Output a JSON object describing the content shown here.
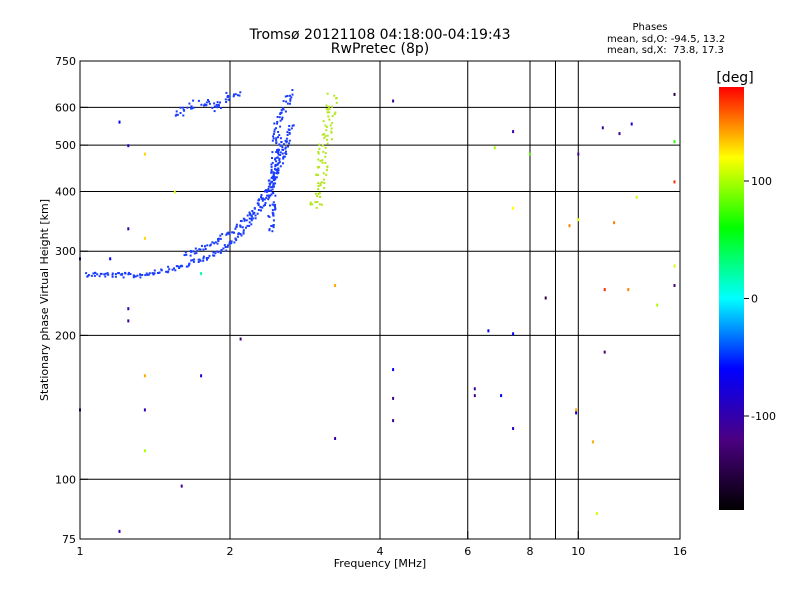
{
  "chart_data": {
    "type": "scatter",
    "title": "Tromsø 20121108 04:18:00-04:19:43",
    "subtitle": "RwPretec (8p)",
    "xlabel": "Frequency [MHz]",
    "ylabel": "Stationary phase Virtual Height [km]",
    "x_scale": "log",
    "y_scale": "log",
    "xlim": [
      1,
      16
    ],
    "ylim": [
      75,
      750
    ],
    "x_ticks": [
      1,
      2,
      4,
      6,
      8,
      10,
      16
    ],
    "x_tick_labels": [
      "1",
      "2",
      "4",
      "6",
      "8",
      "10",
      "16"
    ],
    "x_minor_ticks": [
      9
    ],
    "y_ticks": [
      75,
      100,
      200,
      300,
      400,
      500,
      600,
      750
    ],
    "y_tick_labels": [
      "75",
      "100",
      "200",
      "300",
      "400",
      "500",
      "600",
      "750"
    ],
    "grid": true,
    "stats": {
      "heading": "Phases",
      "line1": "mean, sd,O: -94.5, 13.2",
      "line2": "mean, sd,X:  73.8, 17.3"
    },
    "colorbar": {
      "label": "[deg]",
      "range": [
        -180,
        180
      ],
      "ticks": [
        -100,
        0,
        100
      ],
      "tick_labels": [
        "-100",
        "0",
        "100"
      ],
      "colormap": [
        "#000000",
        "#4b0082",
        "#0000ff",
        "#00ffff",
        "#00ff00",
        "#ffff00",
        "#ff0000"
      ]
    },
    "traces": {
      "color_o": "#1a3cff",
      "color_x": "#b4e61e",
      "f_layer_lower_o": {
        "x": [
          1.02,
          1.3,
          1.6,
          1.9,
          2.1,
          2.3,
          2.45,
          2.55
        ],
        "y": [
          270,
          268,
          280,
          300,
          330,
          370,
          430,
          520
        ]
      },
      "f_layer_upper_o": {
        "x": [
          1.62,
          1.8,
          2.0,
          2.2,
          2.4,
          2.55,
          2.65
        ],
        "y": [
          295,
          310,
          330,
          360,
          420,
          480,
          560
        ]
      },
      "f_layer_vertical_o": {
        "x": [
          2.4,
          2.48,
          2.56,
          2.62,
          2.66
        ],
        "y": [
          330,
          560,
          600,
          640,
          650
        ]
      },
      "e_cusp_o": {
        "x": [
          1.55,
          1.65,
          1.75,
          1.85,
          1.95,
          2.1
        ],
        "y": [
          580,
          600,
          620,
          600,
          630,
          650
        ]
      },
      "x_trace": {
        "x": [
          2.95,
          3.0,
          3.05,
          3.1,
          3.15,
          3.2
        ],
        "y": [
          370,
          400,
          450,
          520,
          590,
          640
        ]
      }
    },
    "scatter_points": [
      {
        "x": 1.0,
        "y": 290,
        "phase": -100
      },
      {
        "x": 1.0,
        "y": 140,
        "phase": -100
      },
      {
        "x": 1.15,
        "y": 290,
        "phase": -60
      },
      {
        "x": 1.2,
        "y": 560,
        "phase": -70
      },
      {
        "x": 1.25,
        "y": 500,
        "phase": -90
      },
      {
        "x": 1.25,
        "y": 335,
        "phase": -100
      },
      {
        "x": 1.25,
        "y": 228,
        "phase": -100
      },
      {
        "x": 1.25,
        "y": 215,
        "phase": -110
      },
      {
        "x": 1.35,
        "y": 480,
        "phase": 130
      },
      {
        "x": 1.35,
        "y": 320,
        "phase": 130
      },
      {
        "x": 1.35,
        "y": 165,
        "phase": 140
      },
      {
        "x": 1.35,
        "y": 140,
        "phase": -100
      },
      {
        "x": 1.35,
        "y": 115,
        "phase": 100
      },
      {
        "x": 1.55,
        "y": 400,
        "phase": 110
      },
      {
        "x": 1.6,
        "y": 97,
        "phase": -110
      },
      {
        "x": 1.75,
        "y": 270,
        "phase": 20
      },
      {
        "x": 1.75,
        "y": 165,
        "phase": -80
      },
      {
        "x": 1.2,
        "y": 78,
        "phase": -100
      },
      {
        "x": 2.1,
        "y": 197,
        "phase": -130
      },
      {
        "x": 3.25,
        "y": 255,
        "phase": 140
      },
      {
        "x": 3.25,
        "y": 122,
        "phase": -100
      },
      {
        "x": 4.25,
        "y": 620,
        "phase": -110
      },
      {
        "x": 4.25,
        "y": 170,
        "phase": -60
      },
      {
        "x": 4.25,
        "y": 148,
        "phase": -120
      },
      {
        "x": 4.25,
        "y": 133,
        "phase": -110
      },
      {
        "x": 6.2,
        "y": 155,
        "phase": -110
      },
      {
        "x": 6.2,
        "y": 150,
        "phase": -120
      },
      {
        "x": 6.6,
        "y": 205,
        "phase": -70
      },
      {
        "x": 6.8,
        "y": 495,
        "phase": 100
      },
      {
        "x": 7.0,
        "y": 150,
        "phase": -60
      },
      {
        "x": 7.4,
        "y": 535,
        "phase": -100
      },
      {
        "x": 7.4,
        "y": 370,
        "phase": 120
      },
      {
        "x": 7.4,
        "y": 202,
        "phase": -60
      },
      {
        "x": 7.4,
        "y": 128,
        "phase": -80
      },
      {
        "x": 8.0,
        "y": 480,
        "phase": 80
      },
      {
        "x": 8.6,
        "y": 240,
        "phase": -150
      },
      {
        "x": 9.6,
        "y": 340,
        "phase": 150
      },
      {
        "x": 9.9,
        "y": 140,
        "phase": 140
      },
      {
        "x": 9.9,
        "y": 138,
        "phase": -80
      },
      {
        "x": 10.0,
        "y": 480,
        "phase": -110
      },
      {
        "x": 10.0,
        "y": 350,
        "phase": 110
      },
      {
        "x": 10.7,
        "y": 120,
        "phase": 140
      },
      {
        "x": 10.9,
        "y": 85,
        "phase": 110
      },
      {
        "x": 11.2,
        "y": 545,
        "phase": -110
      },
      {
        "x": 11.3,
        "y": 250,
        "phase": 170
      },
      {
        "x": 11.3,
        "y": 185,
        "phase": -120
      },
      {
        "x": 11.8,
        "y": 345,
        "phase": 150
      },
      {
        "x": 12.1,
        "y": 530,
        "phase": -110
      },
      {
        "x": 12.6,
        "y": 250,
        "phase": 150
      },
      {
        "x": 12.8,
        "y": 555,
        "phase": -80
      },
      {
        "x": 13.1,
        "y": 390,
        "phase": 110
      },
      {
        "x": 14.4,
        "y": 232,
        "phase": 100
      },
      {
        "x": 15.6,
        "y": 640,
        "phase": -150
      },
      {
        "x": 15.6,
        "y": 510,
        "phase": 70
      },
      {
        "x": 15.6,
        "y": 420,
        "phase": 170
      },
      {
        "x": 15.6,
        "y": 280,
        "phase": 110
      },
      {
        "x": 15.6,
        "y": 255,
        "phase": -120
      }
    ]
  }
}
